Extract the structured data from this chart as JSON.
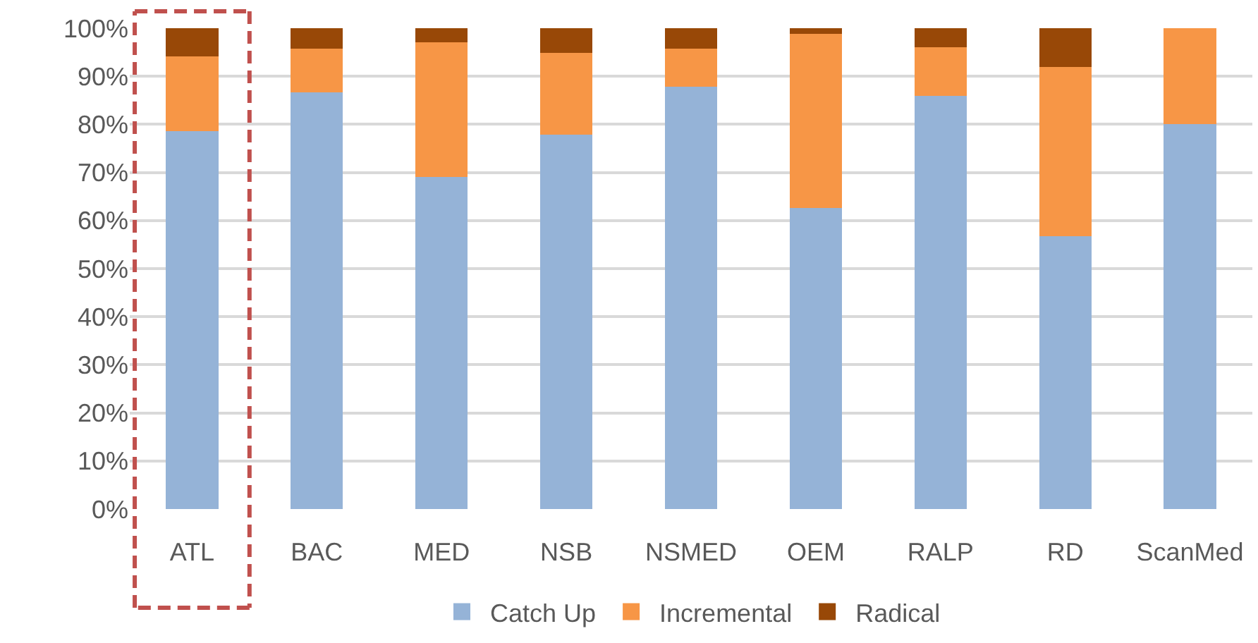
{
  "chart_data": {
    "type": "bar",
    "stacked": true,
    "categories": [
      "ATL",
      "BAC",
      "MED",
      "NSB",
      "NSMED",
      "OEM",
      "RALP",
      "RD",
      "ScanMed"
    ],
    "series": [
      {
        "name": "Catch Up",
        "color": "#95b3d7",
        "values": [
          78.6,
          86.6,
          69.1,
          77.9,
          87.8,
          62.6,
          85.9,
          56.8,
          80.1
        ]
      },
      {
        "name": "Incremental",
        "color": "#f79646",
        "values": [
          15.6,
          9.1,
          28.0,
          17.0,
          7.9,
          36.3,
          10.1,
          35.2,
          19.9
        ]
      },
      {
        "name": "Radical",
        "color": "#984807",
        "values": [
          5.8,
          4.3,
          2.9,
          5.1,
          4.3,
          1.1,
          4.0,
          8.0,
          0
        ]
      }
    ],
    "ylim": [
      0,
      100
    ],
    "yticks": [
      {
        "value": 0,
        "label": "0%"
      },
      {
        "value": 10,
        "label": "10%"
      },
      {
        "value": 20,
        "label": "20%"
      },
      {
        "value": 30,
        "label": "30%"
      },
      {
        "value": 40,
        "label": "40%"
      },
      {
        "value": 50,
        "label": "50%"
      },
      {
        "value": 60,
        "label": "60%"
      },
      {
        "value": 70,
        "label": "70%"
      },
      {
        "value": 80,
        "label": "80%"
      },
      {
        "value": 90,
        "label": "90%"
      },
      {
        "value": 100,
        "label": "100%"
      }
    ],
    "grid": "y",
    "legend": "bottom"
  }
}
